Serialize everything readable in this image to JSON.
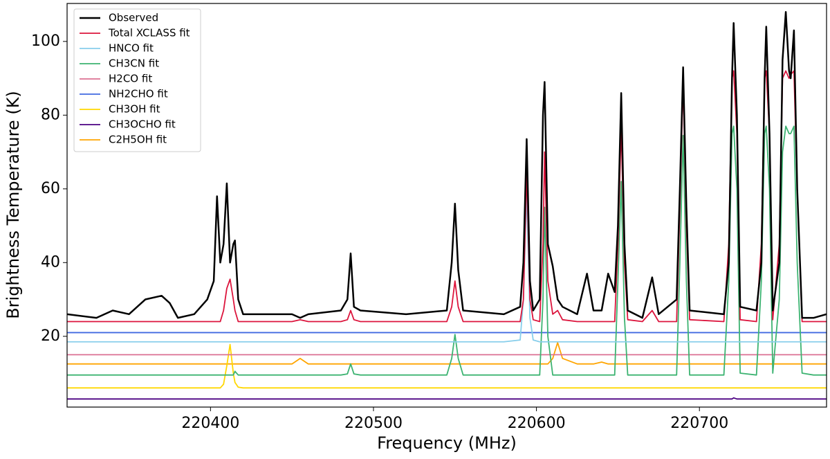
{
  "chart_data": {
    "type": "line",
    "x_label": "Frequency (MHz)",
    "y_label": "Brightness Temperature (K)",
    "xlim": [
      220312,
      220778
    ],
    "ylim": [
      0.8,
      110.3
    ],
    "xticks": [
      220400,
      220500,
      220600,
      220700
    ],
    "yticks": [
      20,
      40,
      60,
      80,
      100
    ],
    "legend": "upper left",
    "x": [
      220312,
      220330,
      220340,
      220350,
      220360,
      220370,
      220375,
      220380,
      220390,
      220398,
      220402,
      220404,
      220406,
      220408,
      220410,
      220412,
      220414,
      220415,
      220417,
      220420,
      220430,
      220450,
      220455,
      220460,
      220480,
      220484,
      220486,
      220488,
      220492,
      220520,
      220545,
      220548,
      220550,
      220552,
      220555,
      220580,
      220590,
      220592,
      220594,
      220596,
      220598,
      220602,
      220604,
      220605,
      220607,
      220610,
      220613,
      220616,
      220625,
      220631,
      220635,
      220640,
      220644,
      220648,
      220650,
      220652,
      220654,
      220656,
      220665,
      220671,
      220675,
      220686,
      220688,
      220690,
      220692,
      220694,
      220715,
      220718,
      220720,
      220721,
      220723,
      220725,
      220735,
      220738,
      220740,
      220741,
      220743,
      220745,
      220749,
      220751,
      220753,
      220755,
      220756,
      220758,
      220760,
      220763,
      220770,
      220778
    ],
    "series": [
      {
        "name": "Observed",
        "color": "#000000",
        "values": [
          26,
          25,
          27,
          26,
          30,
          31,
          29,
          25,
          26,
          30,
          35,
          58,
          40,
          45,
          61.5,
          40,
          45,
          46,
          30,
          26,
          26,
          26,
          25,
          26,
          27,
          30,
          42.5,
          28,
          27,
          26,
          27,
          40,
          56,
          38,
          27,
          26,
          28,
          40,
          73.5,
          35,
          27,
          30,
          80,
          89,
          45,
          39,
          30,
          28,
          26,
          37,
          27,
          27,
          37,
          32,
          50,
          86,
          45,
          27,
          25,
          36,
          26,
          30,
          60,
          93,
          55,
          27,
          26,
          40,
          90,
          105,
          80,
          28,
          27,
          40,
          90,
          104,
          75,
          27,
          40,
          95,
          108,
          92,
          90,
          103,
          60,
          25,
          25,
          26
        ]
      },
      {
        "name": "Total XCLASS fit",
        "color": "#dc143c",
        "values": [
          24,
          24,
          24,
          24,
          24,
          24,
          24,
          24,
          24,
          24,
          24,
          24,
          24,
          27,
          33,
          35.5,
          30,
          27,
          24,
          24,
          24,
          24,
          24.5,
          24,
          24,
          24.5,
          27,
          24.5,
          24,
          24,
          24,
          28,
          35,
          28,
          24,
          24,
          24,
          30,
          65,
          30,
          24.5,
          24,
          45,
          70,
          35,
          26,
          27,
          24.5,
          24,
          24,
          24,
          24,
          24,
          24,
          45,
          77,
          40,
          24.5,
          24,
          27,
          24,
          24,
          55,
          89.5,
          50,
          24.5,
          24,
          45,
          90,
          92,
          75,
          24.5,
          24,
          45,
          90,
          92,
          75,
          24.5,
          45,
          90,
          92,
          90,
          91,
          92,
          60,
          24,
          24,
          24
        ]
      },
      {
        "name": "HNCO fit",
        "color": "#87ceeb",
        "values": [
          18.5,
          18.5,
          18.5,
          18.5,
          18.5,
          18.5,
          18.5,
          18.5,
          18.5,
          18.5,
          18.5,
          18.5,
          18.5,
          18.5,
          18.5,
          18.5,
          18.5,
          18.5,
          18.5,
          18.5,
          18.5,
          18.5,
          18.5,
          18.5,
          18.5,
          18.5,
          18.5,
          18.5,
          18.5,
          18.5,
          18.5,
          18.5,
          18.5,
          18.5,
          18.5,
          18.5,
          19,
          30,
          59,
          25,
          19,
          18.5,
          18.5,
          18.5,
          18.5,
          18.5,
          18.5,
          18.5,
          18.5,
          18.5,
          18.5,
          18.5,
          18.5,
          18.5,
          18.5,
          18.5,
          18.5,
          18.5,
          18.5,
          18.5,
          18.5,
          18.5,
          18.5,
          18.5,
          18.5,
          18.5,
          18.5,
          18.5,
          18.5,
          18.5,
          18.5,
          18.5,
          18.5,
          18.5,
          18.5,
          18.5,
          18.5,
          18.5,
          18.5,
          18.5,
          18.5,
          18.5,
          18.5,
          18.5,
          18.5,
          18.5,
          18.5,
          18.5
        ]
      },
      {
        "name": "CH3CN fit",
        "color": "#3cb371",
        "values": [
          9.5,
          9.5,
          9.5,
          9.5,
          9.5,
          9.5,
          9.5,
          9.5,
          9.5,
          9.5,
          9.5,
          9.5,
          9.5,
          9.5,
          9.5,
          9.5,
          9.5,
          10.5,
          9.5,
          9.5,
          9.5,
          9.5,
          9.5,
          9.5,
          9.5,
          9.8,
          12.5,
          9.8,
          9.5,
          9.5,
          9.5,
          14,
          20.5,
          14,
          9.5,
          9.5,
          9.5,
          9.5,
          9.5,
          9.5,
          9.5,
          9.5,
          30,
          55,
          20,
          9.5,
          9.5,
          9.5,
          9.5,
          9.5,
          9.5,
          9.5,
          9.5,
          9.5,
          35,
          62,
          25,
          9.5,
          9.5,
          9.5,
          9.5,
          9.5,
          40,
          74.5,
          35,
          9.5,
          9.5,
          35,
          75,
          77,
          60,
          10,
          9.5,
          35,
          75,
          77,
          60,
          10,
          30,
          70,
          77,
          75,
          75,
          77,
          40,
          10,
          9.5,
          9.5
        ]
      },
      {
        "name": "H2CO fit",
        "color": "#db7093",
        "values": [
          15,
          15,
          15,
          15,
          15,
          15,
          15,
          15,
          15,
          15,
          15,
          15,
          15,
          15,
          15,
          15,
          15,
          15,
          15,
          15,
          15,
          15,
          15,
          15,
          15,
          15,
          15,
          15,
          15,
          15,
          15,
          15,
          15,
          15,
          15,
          15,
          15,
          15,
          15,
          15,
          15,
          15,
          15,
          15,
          15,
          15,
          15,
          15,
          15,
          15,
          15,
          15,
          15,
          15,
          15,
          15,
          15,
          15,
          15,
          15,
          15,
          15,
          15,
          15,
          15,
          15,
          15,
          15,
          15,
          15,
          15,
          15,
          15,
          15,
          15,
          15,
          15,
          15,
          15,
          15,
          15,
          15,
          15,
          15,
          15,
          15,
          15,
          15
        ]
      },
      {
        "name": "NH2CHO fit",
        "color": "#4169e1",
        "values": [
          21,
          21,
          21,
          21,
          21,
          21,
          21,
          21,
          21,
          21,
          21,
          21,
          21,
          21,
          21,
          21,
          21,
          21,
          21,
          21,
          21,
          21,
          21,
          21,
          21,
          21,
          21,
          21,
          21,
          21,
          21,
          21,
          21,
          21,
          21,
          21,
          21,
          21,
          21,
          21,
          21,
          21,
          21,
          21,
          21,
          21,
          21,
          21,
          21,
          21,
          21,
          21,
          21,
          21,
          21,
          21,
          21,
          21,
          21,
          21,
          21,
          21,
          21,
          21,
          21,
          21,
          21,
          21,
          21,
          21,
          21,
          21,
          21,
          21,
          21,
          21,
          21,
          21,
          21,
          21,
          21,
          21,
          21,
          21,
          21,
          21,
          21,
          21
        ]
      },
      {
        "name": "CH3OH fit",
        "color": "#ffd700",
        "values": [
          6,
          6,
          6,
          6,
          6,
          6,
          6,
          6,
          6,
          6,
          6,
          6,
          6,
          7,
          12,
          17.8,
          10,
          7.5,
          6.2,
          6,
          6,
          6,
          6,
          6,
          6,
          6,
          6,
          6,
          6,
          6,
          6,
          6,
          6,
          6,
          6,
          6,
          6,
          6,
          6,
          6,
          6,
          6,
          6,
          6,
          6,
          6,
          6,
          6,
          6,
          6,
          6,
          6,
          6,
          6,
          6,
          6,
          6,
          6,
          6,
          6,
          6,
          6,
          6,
          6,
          6,
          6,
          6,
          6,
          6,
          6,
          6,
          6,
          6,
          6,
          6,
          6,
          6,
          6,
          6,
          6,
          6,
          6,
          6,
          6,
          6,
          6,
          6,
          6
        ]
      },
      {
        "name": "CH3OCHO fit",
        "color": "#4b0082",
        "values": [
          3,
          3,
          3,
          3,
          3,
          3,
          3,
          3,
          3,
          3,
          3,
          3,
          3,
          3,
          3,
          3,
          3,
          3,
          3,
          3,
          3,
          3,
          3,
          3,
          3,
          3,
          3,
          3,
          3,
          3,
          3,
          3,
          3,
          3,
          3,
          3,
          3,
          3,
          3,
          3,
          3,
          3,
          3,
          3,
          3,
          3,
          3,
          3,
          3,
          3,
          3,
          3,
          3,
          3,
          3,
          3,
          3,
          3,
          3,
          3,
          3,
          3,
          3,
          3,
          3,
          3,
          3,
          3,
          3,
          3.3,
          3,
          3,
          3,
          3,
          3,
          3,
          3,
          3,
          3,
          3,
          3,
          3,
          3,
          3,
          3,
          3,
          3,
          3
        ]
      },
      {
        "name": "C2H5OH fit",
        "color": "#ffa500",
        "values": [
          12.5,
          12.5,
          12.5,
          12.5,
          12.5,
          12.5,
          12.5,
          12.5,
          12.5,
          12.5,
          12.5,
          12.5,
          12.5,
          12.5,
          12.5,
          12.5,
          12.5,
          12.5,
          12.5,
          12.5,
          12.5,
          12.5,
          14,
          12.5,
          12.5,
          12.5,
          12.5,
          12.5,
          12.5,
          12.5,
          12.5,
          12.5,
          12.5,
          12.5,
          12.5,
          12.5,
          12.5,
          12.5,
          12.5,
          12.5,
          12.5,
          12.5,
          12.5,
          12.5,
          12.5,
          14,
          18.3,
          14,
          12.5,
          12.5,
          12.5,
          13,
          12.5,
          12.5,
          12.5,
          12.5,
          12.5,
          12.5,
          12.5,
          12.5,
          12.5,
          12.5,
          12.5,
          12.5,
          12.5,
          12.5,
          12.5,
          12.5,
          12.5,
          12.5,
          12.5,
          12.5,
          12.5,
          12.5,
          12.5,
          12.5,
          12.5,
          12.5,
          12.5,
          12.5,
          12.5,
          12.5,
          12.5,
          12.5,
          12.5,
          12.5,
          12.5,
          12.5
        ]
      }
    ]
  }
}
